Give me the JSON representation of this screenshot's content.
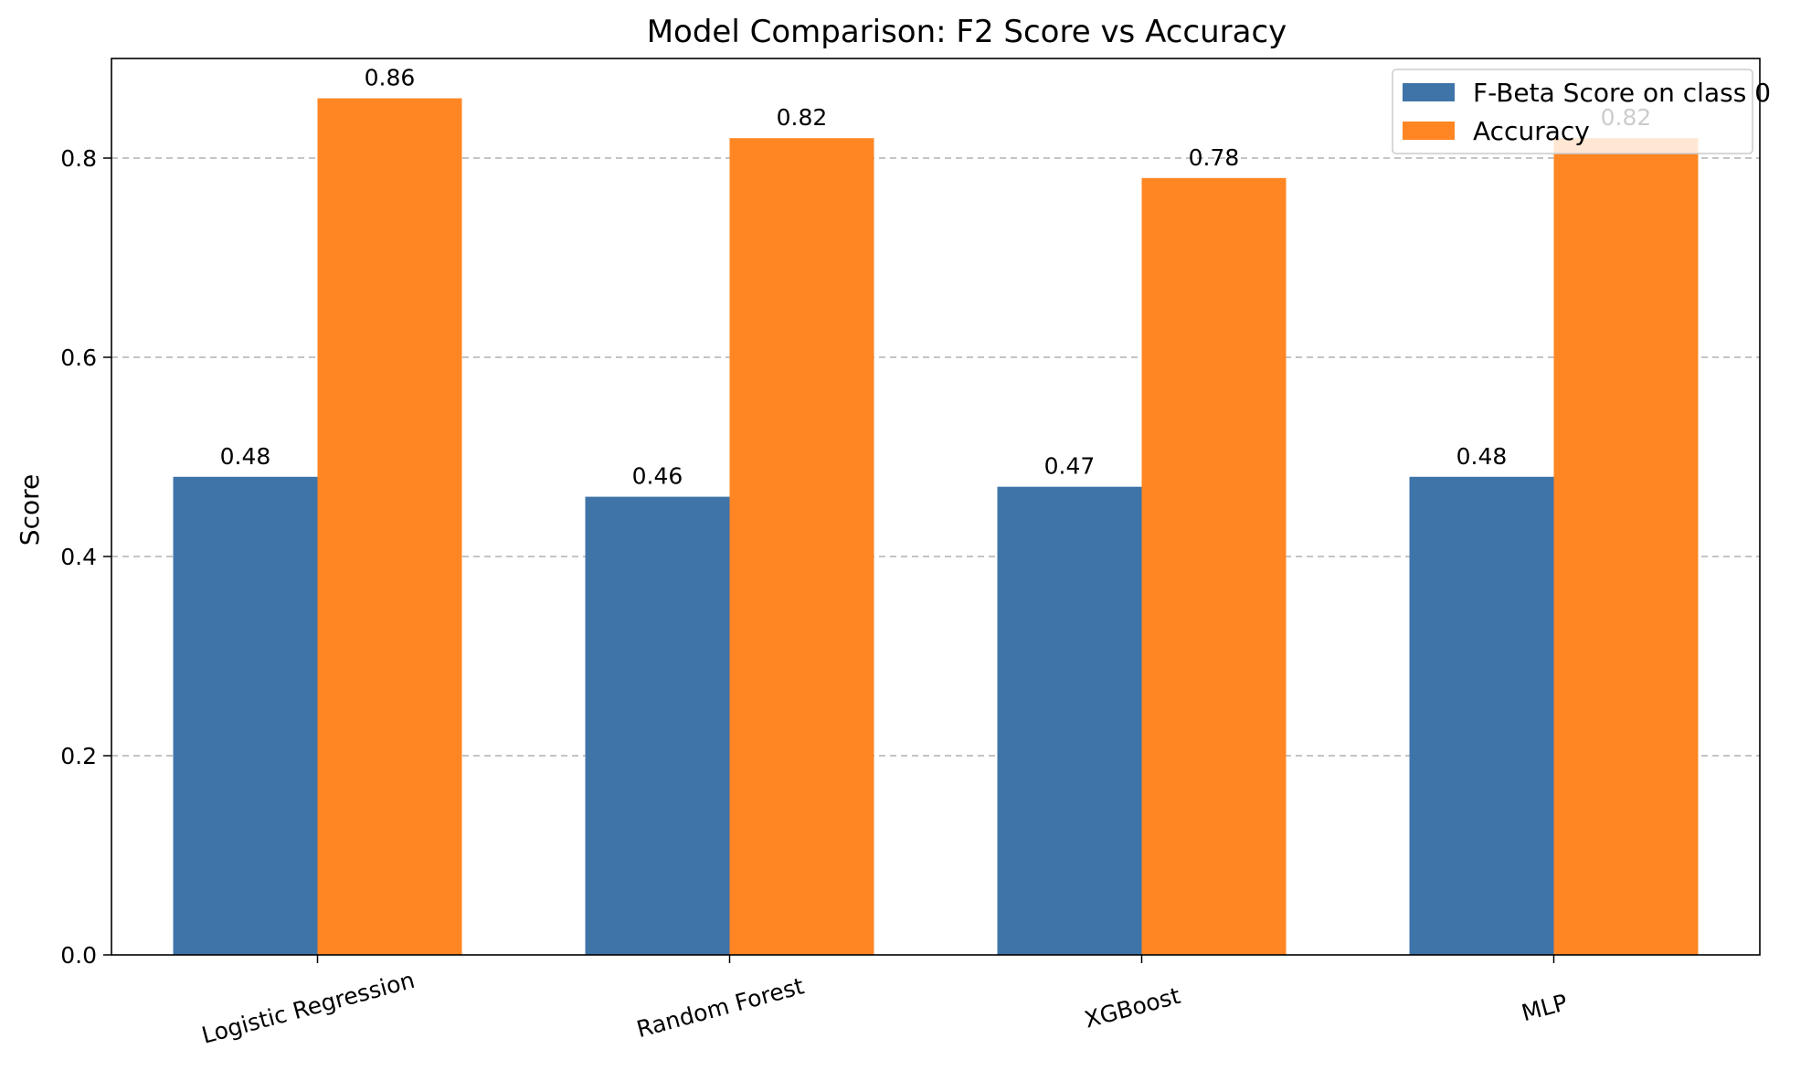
{
  "chart_data": {
    "type": "bar",
    "title": "Model Comparison: F2 Score vs Accuracy",
    "xlabel": "",
    "ylabel": "Score",
    "categories": [
      "Logistic Regression",
      "Random Forest",
      "XGBoost",
      "MLP"
    ],
    "series": [
      {
        "name": "F-Beta Score on class 0",
        "color": "#3f74a9",
        "values": [
          0.48,
          0.46,
          0.47,
          0.48
        ],
        "labels": [
          "0.48",
          "0.46",
          "0.47",
          "0.48"
        ]
      },
      {
        "name": "Accuracy",
        "color": "#ff8623",
        "values": [
          0.86,
          0.82,
          0.78,
          0.82
        ],
        "labels": [
          "0.86",
          "0.82",
          "0.78",
          "0.82"
        ]
      }
    ],
    "ylim": [
      0,
      0.9
    ],
    "yticks": [
      0.0,
      0.2,
      0.4,
      0.6,
      0.8
    ],
    "ytick_labels": [
      "0.0",
      "0.2",
      "0.4",
      "0.6",
      "0.8"
    ],
    "grid": "y-dashed",
    "legend_position": "top-right"
  }
}
